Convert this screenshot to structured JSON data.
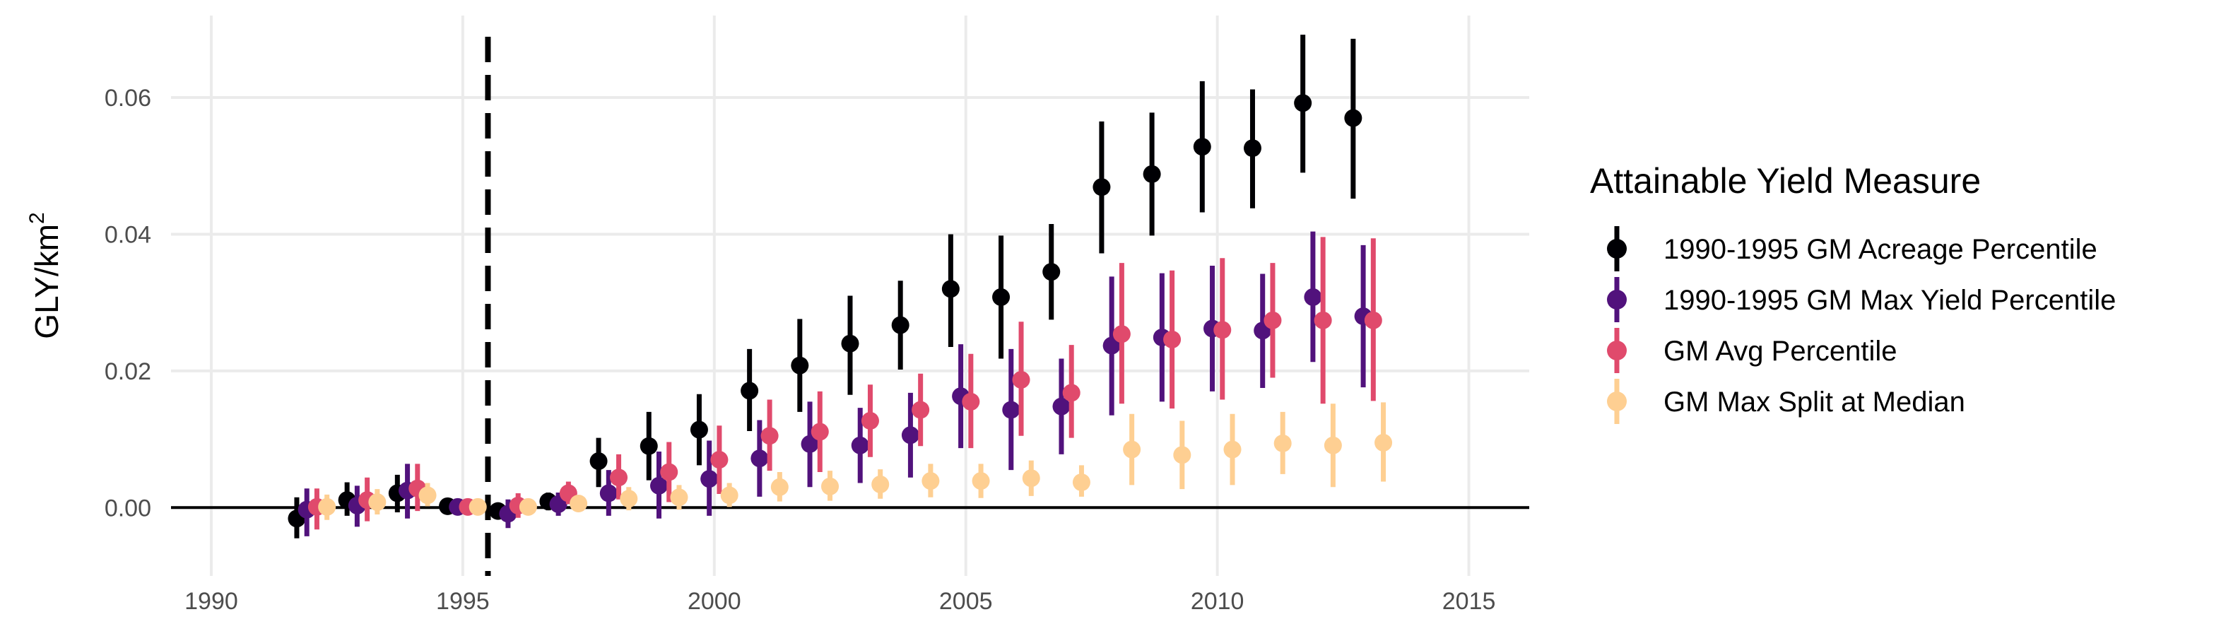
{
  "chart_data": {
    "type": "scatter",
    "xlabel": "",
    "ylabel": "GLY/km",
    "ylabel_superscript": "2",
    "xlim": [
      1989.2,
      2016.2
    ],
    "ylim": [
      -0.01,
      0.072
    ],
    "x_ticks": [
      1990,
      1995,
      2000,
      2005,
      2010,
      2015
    ],
    "y_ticks": [
      0.0,
      0.02,
      0.04,
      0.06
    ],
    "x_tick_labels": [
      "1990",
      "1995",
      "2000",
      "2005",
      "2010",
      "2015"
    ],
    "y_tick_labels": [
      "0.00",
      "0.02",
      "0.04",
      "0.06"
    ],
    "reference_lines": [
      {
        "orientation": "vertical",
        "x": 1995.5,
        "style": "dashed"
      },
      {
        "orientation": "horizontal",
        "y": 0,
        "style": "solid"
      }
    ],
    "legend": {
      "title": "Attainable Yield Measure",
      "position": "right"
    },
    "grid": true,
    "dodge_offsets": [
      -0.3,
      -0.1,
      0.1,
      0.3
    ],
    "series": [
      {
        "name": "1990-1995 GM Acreage Percentile",
        "color": "#000004",
        "points": [
          {
            "x": 1992,
            "y": -0.0016,
            "lo": -0.0045,
            "hi": 0.0015
          },
          {
            "x": 1993,
            "y": 0.0011,
            "lo": -0.0012,
            "hi": 0.0037
          },
          {
            "x": 1994,
            "y": 0.0021,
            "lo": -0.0007,
            "hi": 0.0048
          },
          {
            "x": 1995,
            "y": 0.0002,
            "lo": 0.0,
            "hi": 0.0004
          },
          {
            "x": 1996,
            "y": -0.0005,
            "lo": -0.0015,
            "hi": 0.0004
          },
          {
            "x": 1997,
            "y": 0.0009,
            "lo": -0.0004,
            "hi": 0.0022
          },
          {
            "x": 1998,
            "y": 0.0068,
            "lo": 0.003,
            "hi": 0.0102
          },
          {
            "x": 1999,
            "y": 0.009,
            "lo": 0.004,
            "hi": 0.014
          },
          {
            "x": 2000,
            "y": 0.0114,
            "lo": 0.0062,
            "hi": 0.0166
          },
          {
            "x": 2001,
            "y": 0.0171,
            "lo": 0.0112,
            "hi": 0.0232
          },
          {
            "x": 2002,
            "y": 0.0208,
            "lo": 0.014,
            "hi": 0.0276
          },
          {
            "x": 2003,
            "y": 0.024,
            "lo": 0.0165,
            "hi": 0.031
          },
          {
            "x": 2004,
            "y": 0.0267,
            "lo": 0.0202,
            "hi": 0.0332
          },
          {
            "x": 2005,
            "y": 0.032,
            "lo": 0.0235,
            "hi": 0.04
          },
          {
            "x": 2006,
            "y": 0.0308,
            "lo": 0.0218,
            "hi": 0.0398
          },
          {
            "x": 2007,
            "y": 0.0345,
            "lo": 0.0275,
            "hi": 0.0415
          },
          {
            "x": 2008,
            "y": 0.0469,
            "lo": 0.0372,
            "hi": 0.0565
          },
          {
            "x": 2009,
            "y": 0.0488,
            "lo": 0.0398,
            "hi": 0.0578
          },
          {
            "x": 2010,
            "y": 0.0528,
            "lo": 0.0432,
            "hi": 0.0624
          },
          {
            "x": 2011,
            "y": 0.0526,
            "lo": 0.0438,
            "hi": 0.0612
          },
          {
            "x": 2012,
            "y": 0.0592,
            "lo": 0.049,
            "hi": 0.0692
          },
          {
            "x": 2013,
            "y": 0.057,
            "lo": 0.0452,
            "hi": 0.0686
          }
        ]
      },
      {
        "name": "1990-1995 GM Max Yield Percentile",
        "color": "#51127c",
        "points": [
          {
            "x": 1992,
            "y": -0.0003,
            "lo": -0.0042,
            "hi": 0.0028
          },
          {
            "x": 1993,
            "y": 0.0003,
            "lo": -0.0028,
            "hi": 0.0032
          },
          {
            "x": 1994,
            "y": 0.0025,
            "lo": -0.0016,
            "hi": 0.0064
          },
          {
            "x": 1995,
            "y": 0.0001,
            "lo": 0.0,
            "hi": 0.0002
          },
          {
            "x": 1996,
            "y": -0.0009,
            "lo": -0.003,
            "hi": 0.0012
          },
          {
            "x": 1997,
            "y": 0.0005,
            "lo": -0.0012,
            "hi": 0.0022
          },
          {
            "x": 1998,
            "y": 0.0021,
            "lo": -0.0012,
            "hi": 0.0055
          },
          {
            "x": 1999,
            "y": 0.0032,
            "lo": -0.0016,
            "hi": 0.0082
          },
          {
            "x": 2000,
            "y": 0.0042,
            "lo": -0.0012,
            "hi": 0.0098
          },
          {
            "x": 2001,
            "y": 0.0072,
            "lo": 0.0016,
            "hi": 0.0128
          },
          {
            "x": 2002,
            "y": 0.0093,
            "lo": 0.003,
            "hi": 0.0155
          },
          {
            "x": 2003,
            "y": 0.0091,
            "lo": 0.0036,
            "hi": 0.0146
          },
          {
            "x": 2004,
            "y": 0.0106,
            "lo": 0.0044,
            "hi": 0.0168
          },
          {
            "x": 2005,
            "y": 0.0163,
            "lo": 0.0087,
            "hi": 0.0239
          },
          {
            "x": 2006,
            "y": 0.0143,
            "lo": 0.0055,
            "hi": 0.0232
          },
          {
            "x": 2007,
            "y": 0.0148,
            "lo": 0.0078,
            "hi": 0.0218
          },
          {
            "x": 2008,
            "y": 0.0237,
            "lo": 0.0135,
            "hi": 0.0338
          },
          {
            "x": 2009,
            "y": 0.0249,
            "lo": 0.0155,
            "hi": 0.0343
          },
          {
            "x": 2010,
            "y": 0.0262,
            "lo": 0.017,
            "hi": 0.0354
          },
          {
            "x": 2011,
            "y": 0.0259,
            "lo": 0.0175,
            "hi": 0.0342
          },
          {
            "x": 2012,
            "y": 0.0308,
            "lo": 0.0213,
            "hi": 0.0404
          },
          {
            "x": 2013,
            "y": 0.028,
            "lo": 0.0176,
            "hi": 0.0384
          }
        ]
      },
      {
        "name": "GM Avg Percentile",
        "color": "#e04a6c",
        "points": [
          {
            "x": 1992,
            "y": 0.0001,
            "lo": -0.0032,
            "hi": 0.0028
          },
          {
            "x": 1993,
            "y": 0.0011,
            "lo": -0.002,
            "hi": 0.0044
          },
          {
            "x": 1994,
            "y": 0.0028,
            "lo": -0.0005,
            "hi": 0.0064
          },
          {
            "x": 1995,
            "y": 0.0001,
            "lo": 0.0,
            "hi": 0.0002
          },
          {
            "x": 1996,
            "y": 0.0003,
            "lo": -0.0015,
            "hi": 0.0021
          },
          {
            "x": 1997,
            "y": 0.0021,
            "lo": 0.0005,
            "hi": 0.0038
          },
          {
            "x": 1998,
            "y": 0.0044,
            "lo": 0.0012,
            "hi": 0.0078
          },
          {
            "x": 1999,
            "y": 0.0052,
            "lo": 0.0008,
            "hi": 0.0096
          },
          {
            "x": 2000,
            "y": 0.007,
            "lo": 0.002,
            "hi": 0.012
          },
          {
            "x": 2001,
            "y": 0.0105,
            "lo": 0.0054,
            "hi": 0.0158
          },
          {
            "x": 2002,
            "y": 0.0111,
            "lo": 0.0052,
            "hi": 0.017
          },
          {
            "x": 2003,
            "y": 0.0127,
            "lo": 0.0074,
            "hi": 0.018
          },
          {
            "x": 2004,
            "y": 0.0143,
            "lo": 0.009,
            "hi": 0.0196
          },
          {
            "x": 2005,
            "y": 0.0155,
            "lo": 0.0087,
            "hi": 0.0225
          },
          {
            "x": 2006,
            "y": 0.0187,
            "lo": 0.0105,
            "hi": 0.0272
          },
          {
            "x": 2007,
            "y": 0.0168,
            "lo": 0.0102,
            "hi": 0.0238
          },
          {
            "x": 2008,
            "y": 0.0254,
            "lo": 0.0152,
            "hi": 0.0358
          },
          {
            "x": 2009,
            "y": 0.0246,
            "lo": 0.0145,
            "hi": 0.0347
          },
          {
            "x": 2010,
            "y": 0.026,
            "lo": 0.0158,
            "hi": 0.0365
          },
          {
            "x": 2011,
            "y": 0.0274,
            "lo": 0.019,
            "hi": 0.0358
          },
          {
            "x": 2012,
            "y": 0.0274,
            "lo": 0.0152,
            "hi": 0.0396
          },
          {
            "x": 2013,
            "y": 0.0274,
            "lo": 0.0156,
            "hi": 0.0394
          }
        ]
      },
      {
        "name": "GM Max Split at Median",
        "color": "#fecf92",
        "points": [
          {
            "x": 1992,
            "y": 0.0001,
            "lo": -0.0018,
            "hi": 0.0019
          },
          {
            "x": 1993,
            "y": 0.0008,
            "lo": -0.001,
            "hi": 0.0027
          },
          {
            "x": 1994,
            "y": 0.0018,
            "lo": 0.0002,
            "hi": 0.0036
          },
          {
            "x": 1995,
            "y": 0.0001,
            "lo": 0.0,
            "hi": 0.0002
          },
          {
            "x": 1996,
            "y": 0.0001,
            "lo": -0.0008,
            "hi": 0.001
          },
          {
            "x": 1997,
            "y": 0.0006,
            "lo": -0.0004,
            "hi": 0.0016
          },
          {
            "x": 1998,
            "y": 0.0013,
            "lo": -0.0004,
            "hi": 0.003
          },
          {
            "x": 1999,
            "y": 0.0015,
            "lo": -0.0003,
            "hi": 0.0033
          },
          {
            "x": 2000,
            "y": 0.0018,
            "lo": 0.0001,
            "hi": 0.0036
          },
          {
            "x": 2001,
            "y": 0.003,
            "lo": 0.0009,
            "hi": 0.0052
          },
          {
            "x": 2002,
            "y": 0.0031,
            "lo": 0.001,
            "hi": 0.0054
          },
          {
            "x": 2003,
            "y": 0.0034,
            "lo": 0.0013,
            "hi": 0.0056
          },
          {
            "x": 2004,
            "y": 0.0039,
            "lo": 0.0015,
            "hi": 0.0064
          },
          {
            "x": 2005,
            "y": 0.0039,
            "lo": 0.0014,
            "hi": 0.0064
          },
          {
            "x": 2006,
            "y": 0.0043,
            "lo": 0.0017,
            "hi": 0.0069
          },
          {
            "x": 2007,
            "y": 0.0037,
            "lo": 0.0016,
            "hi": 0.0062
          },
          {
            "x": 2008,
            "y": 0.0085,
            "lo": 0.0033,
            "hi": 0.0137
          },
          {
            "x": 2009,
            "y": 0.0077,
            "lo": 0.0027,
            "hi": 0.0127
          },
          {
            "x": 2010,
            "y": 0.0085,
            "lo": 0.0033,
            "hi": 0.0137
          },
          {
            "x": 2011,
            "y": 0.0094,
            "lo": 0.0049,
            "hi": 0.014
          },
          {
            "x": 2012,
            "y": 0.0091,
            "lo": 0.003,
            "hi": 0.0152
          },
          {
            "x": 2013,
            "y": 0.0095,
            "lo": 0.0038,
            "hi": 0.0154
          }
        ]
      }
    ]
  }
}
